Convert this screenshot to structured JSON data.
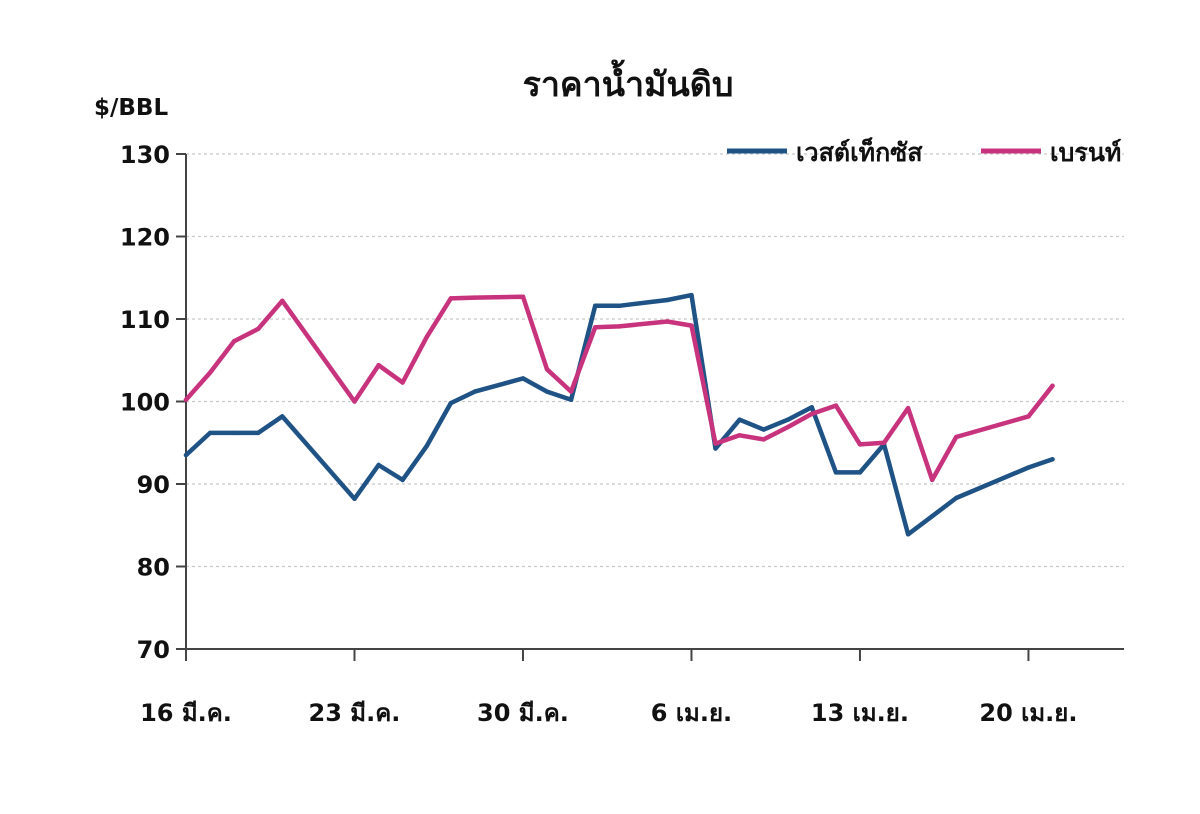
{
  "chart_data": {
    "type": "line",
    "title": "ราคาน้ำมันดิบ",
    "ylabel": "$/BBL",
    "xlabel": "",
    "ylim": [
      70,
      130
    ],
    "yticks": [
      "130",
      "120",
      "110",
      "100",
      "90",
      "80",
      "70"
    ],
    "ytick_values": [
      130,
      120,
      110,
      100,
      90,
      80,
      70
    ],
    "categories": [
      "16 มี.ค.",
      "23 มี.ค.",
      "30 มี.ค.",
      "6 เม.ย.",
      "13 เม.ย.",
      "20 เม.ย."
    ],
    "category_day": [
      0,
      7,
      14,
      21,
      28,
      35
    ],
    "x_unit": "days from 16 มี.ค.",
    "grid": true,
    "legend_position": "top-right",
    "series": [
      {
        "name": "เวสต์เท็กซัส",
        "color": "#1f5386",
        "x": [
          0,
          1,
          2,
          3,
          4,
          7,
          8,
          9,
          10,
          11,
          12,
          14,
          15,
          16,
          17,
          18,
          20,
          21,
          22,
          23,
          24,
          25,
          26,
          27,
          28,
          29,
          30,
          31,
          32,
          35,
          36
        ],
        "values": [
          93.5,
          96.2,
          96.2,
          96.2,
          98.2,
          88.2,
          92.3,
          90.5,
          94.6,
          99.8,
          101.2,
          102.8,
          101.2,
          100.2,
          111.6,
          111.6,
          112.3,
          112.9,
          94.3,
          97.8,
          96.6,
          97.8,
          99.3,
          91.4,
          91.4,
          94.8,
          83.9,
          86.1,
          88.3,
          92,
          93
        ]
      },
      {
        "name": "เบรนท์",
        "color": "#c8337e",
        "x": [
          0,
          1,
          2,
          3,
          4,
          7,
          8,
          9,
          10,
          11,
          12,
          14,
          15,
          16,
          17,
          18,
          20,
          21,
          22,
          23,
          24,
          25,
          26,
          27,
          28,
          29,
          30,
          31,
          32,
          35,
          36
        ],
        "values": [
          100.2,
          103.5,
          107.3,
          108.8,
          112.2,
          100,
          104.4,
          102.3,
          107.8,
          112.5,
          112.6,
          112.7,
          103.9,
          101.2,
          109,
          109.1,
          109.7,
          109.2,
          94.9,
          95.9,
          95.4,
          96.9,
          98.5,
          99.5,
          94.8,
          95,
          99.2,
          90.5,
          95.7,
          98.2,
          101.9
        ]
      }
    ]
  }
}
